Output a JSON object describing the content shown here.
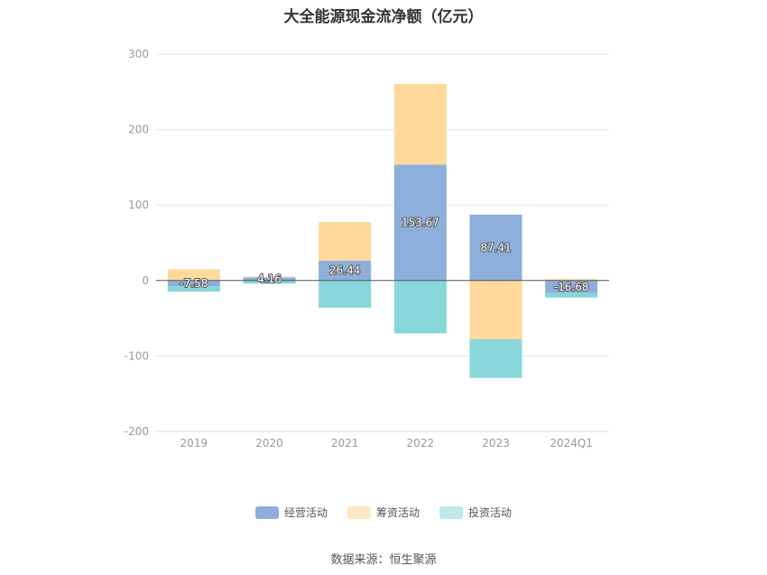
{
  "chart_data": {
    "type": "bar",
    "stacked": true,
    "title": "大全能源现金流净额（亿元）",
    "categories": [
      "2019",
      "2020",
      "2021",
      "2022",
      "2023",
      "2024Q1"
    ],
    "ylim": [
      -200,
      300
    ],
    "yticks": [
      300,
      200,
      100,
      0,
      -100,
      -200
    ],
    "grid": true,
    "legend_position": "bottom",
    "series": [
      {
        "name": "经营活动",
        "color": "#8eaedb",
        "values": [
          -7.58,
          4.16,
          26.44,
          153.67,
          87.41,
          -16.68
        ],
        "labels": [
          "-7.58",
          "4.16",
          "26.44",
          "153.67",
          "87.41",
          "-16.68"
        ]
      },
      {
        "name": "筹资活动",
        "color": "#fed99b",
        "values": [
          15,
          1,
          51,
          107,
          -78,
          2
        ]
      },
      {
        "name": "投资活动",
        "color": "#86d6da",
        "values": [
          -7,
          -4,
          -36,
          -70,
          -51,
          -6
        ]
      }
    ],
    "legend_colors": [
      "#8eaedb",
      "#fde8c4",
      "#bde9ea"
    ]
  },
  "source": "数据来源：恒生聚源"
}
